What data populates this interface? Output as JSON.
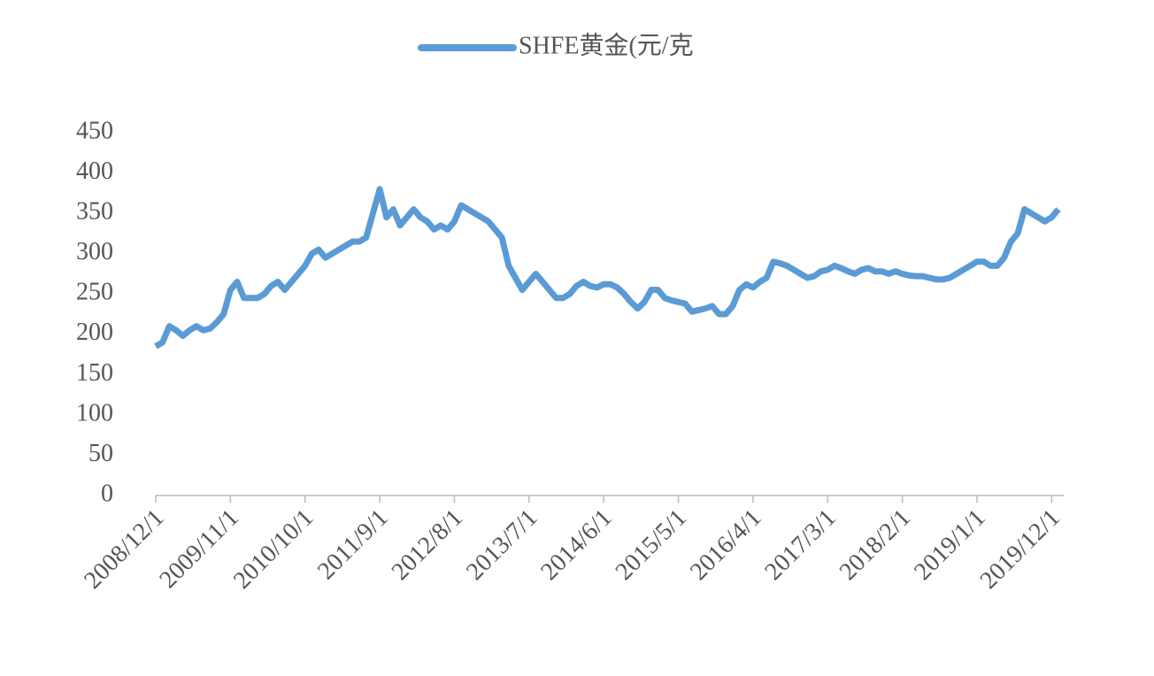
{
  "chart_data": {
    "type": "line",
    "x": [
      "2008/12/1",
      "2009/1/1",
      "2009/2/1",
      "2009/3/1",
      "2009/4/1",
      "2009/5/1",
      "2009/6/1",
      "2009/7/1",
      "2009/8/1",
      "2009/9/1",
      "2009/10/1",
      "2009/11/1",
      "2009/12/1",
      "2010/1/1",
      "2010/2/1",
      "2010/3/1",
      "2010/4/1",
      "2010/5/1",
      "2010/6/1",
      "2010/7/1",
      "2010/8/1",
      "2010/9/1",
      "2010/10/1",
      "2010/11/1",
      "2010/12/1",
      "2011/1/1",
      "2011/2/1",
      "2011/3/1",
      "2011/4/1",
      "2011/5/1",
      "2011/6/1",
      "2011/7/1",
      "2011/8/1",
      "2011/9/1",
      "2011/10/1",
      "2011/11/1",
      "2011/12/1",
      "2012/1/1",
      "2012/2/1",
      "2012/3/1",
      "2012/4/1",
      "2012/5/1",
      "2012/6/1",
      "2012/7/1",
      "2012/8/1",
      "2012/9/1",
      "2012/10/1",
      "2012/11/1",
      "2012/12/1",
      "2013/1/1",
      "2013/2/1",
      "2013/3/1",
      "2013/4/1",
      "2013/5/1",
      "2013/6/1",
      "2013/7/1",
      "2013/8/1",
      "2013/9/1",
      "2013/10/1",
      "2013/11/1",
      "2013/12/1",
      "2014/1/1",
      "2014/2/1",
      "2014/3/1",
      "2014/4/1",
      "2014/5/1",
      "2014/6/1",
      "2014/7/1",
      "2014/8/1",
      "2014/9/1",
      "2014/10/1",
      "2014/11/1",
      "2014/12/1",
      "2015/1/1",
      "2015/2/1",
      "2015/3/1",
      "2015/4/1",
      "2015/5/1",
      "2015/6/1",
      "2015/7/1",
      "2015/8/1",
      "2015/9/1",
      "2015/10/1",
      "2015/11/1",
      "2015/12/1",
      "2016/1/1",
      "2016/2/1",
      "2016/3/1",
      "2016/4/1",
      "2016/5/1",
      "2016/6/1",
      "2016/7/1",
      "2016/8/1",
      "2016/9/1",
      "2016/10/1",
      "2016/11/1",
      "2016/12/1",
      "2017/1/1",
      "2017/2/1",
      "2017/3/1",
      "2017/4/1",
      "2017/5/1",
      "2017/6/1",
      "2017/7/1",
      "2017/8/1",
      "2017/9/1",
      "2017/10/1",
      "2017/11/1",
      "2017/12/1",
      "2018/1/1",
      "2018/2/1",
      "2018/3/1",
      "2018/4/1",
      "2018/5/1",
      "2018/6/1",
      "2018/7/1",
      "2018/8/1",
      "2018/9/1",
      "2018/10/1",
      "2018/11/1",
      "2018/12/1",
      "2019/1/1",
      "2019/2/1",
      "2019/3/1",
      "2019/4/1",
      "2019/5/1",
      "2019/6/1",
      "2019/7/1",
      "2019/8/1",
      "2019/9/1",
      "2019/10/1",
      "2019/11/1",
      "2019/12/1",
      "2020/1/1"
    ],
    "series": [
      {
        "name": "SHFE黄金(元/克",
        "color": "#5b9bd5",
        "values": [
          185,
          190,
          210,
          205,
          198,
          205,
          210,
          205,
          207,
          215,
          225,
          255,
          265,
          245,
          245,
          245,
          250,
          260,
          265,
          255,
          265,
          275,
          285,
          300,
          305,
          295,
          300,
          305,
          310,
          315,
          315,
          320,
          350,
          380,
          345,
          355,
          335,
          345,
          355,
          345,
          340,
          330,
          335,
          330,
          340,
          360,
          355,
          350,
          345,
          340,
          330,
          320,
          285,
          270,
          255,
          265,
          275,
          265,
          255,
          245,
          245,
          250,
          260,
          265,
          260,
          258,
          262,
          262,
          258,
          250,
          240,
          232,
          240,
          255,
          255,
          245,
          242,
          240,
          238,
          228,
          230,
          232,
          235,
          225,
          225,
          235,
          255,
          262,
          258,
          265,
          270,
          290,
          288,
          285,
          280,
          275,
          270,
          272,
          278,
          280,
          285,
          282,
          278,
          275,
          280,
          282,
          278,
          278,
          275,
          278,
          275,
          273,
          272,
          272,
          270,
          268,
          268,
          270,
          275,
          280,
          285,
          290,
          290,
          285,
          285,
          295,
          315,
          325,
          355,
          350,
          345,
          340,
          345,
          355
        ]
      }
    ],
    "xlim": [
      "2008/12/1",
      "2020/1/1"
    ],
    "xticks": [
      "2008/12/1",
      "2009/11/1",
      "2010/10/1",
      "2011/9/1",
      "2012/8/1",
      "2013/7/1",
      "2014/6/1",
      "2015/5/1",
      "2016/4/1",
      "2017/3/1",
      "2018/2/1",
      "2019/1/1",
      "2019/12/1"
    ],
    "ylim": [
      0,
      450
    ],
    "yticks": [
      0,
      50,
      100,
      150,
      200,
      250,
      300,
      350,
      400,
      450
    ],
    "grid": false,
    "legend": "top"
  }
}
